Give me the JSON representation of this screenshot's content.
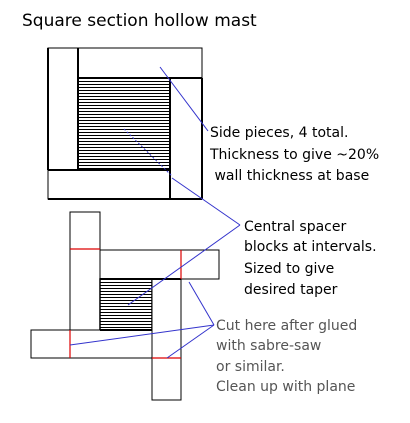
{
  "title": "Square section hollow mast",
  "labels": {
    "side_pieces": [
      "Side pieces, 4 total.",
      "Thickness to give ~20%",
      " wall thickness at base"
    ],
    "spacer": [
      "Central spacer",
      "blocks at intervals.",
      "Sized to give",
      "desired taper"
    ],
    "cut": [
      "Cut here after glued",
      "with sabre-saw"
    ],
    "clean": [
      "or similar.",
      "Clean up with plane"
    ]
  },
  "colors": {
    "leader": "#3333cc",
    "cut_mark": "#dd0000",
    "grey_text": "#555555"
  }
}
